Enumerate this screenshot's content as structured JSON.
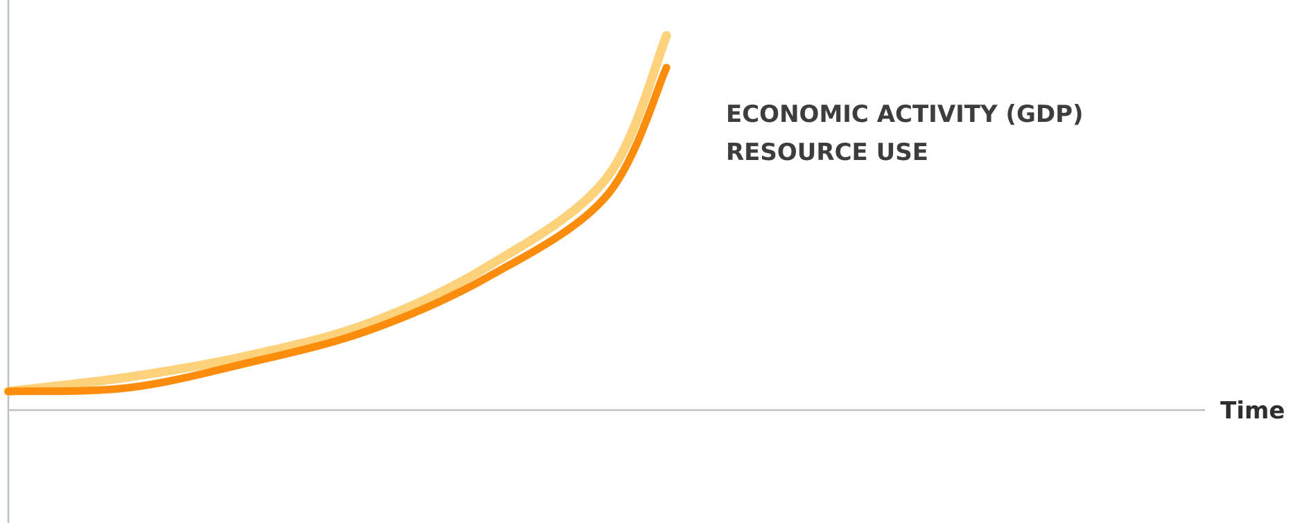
{
  "chart_data": {
    "type": "line",
    "title": "",
    "xlabel": "Time",
    "ylabel": "",
    "grid": false,
    "legend": "end-of-line labels",
    "xlim": [
      0,
      1
    ],
    "ylim": [
      -0.37,
      1.1
    ],
    "x": [
      0,
      0.1,
      0.2,
      0.3,
      0.4,
      0.5,
      0.55
    ],
    "series": [
      {
        "name": "ECONOMIC ACTIVITY (GDP)",
        "color": "#fdd27a",
        "values": [
          0,
          0.04,
          0.1,
          0.19,
          0.35,
          0.6,
          1.0
        ]
      },
      {
        "name": "RESOURCE USE",
        "color": "#fb8c0c",
        "values": [
          0,
          0.01,
          0.08,
          0.17,
          0.32,
          0.55,
          0.91
        ]
      }
    ]
  }
}
